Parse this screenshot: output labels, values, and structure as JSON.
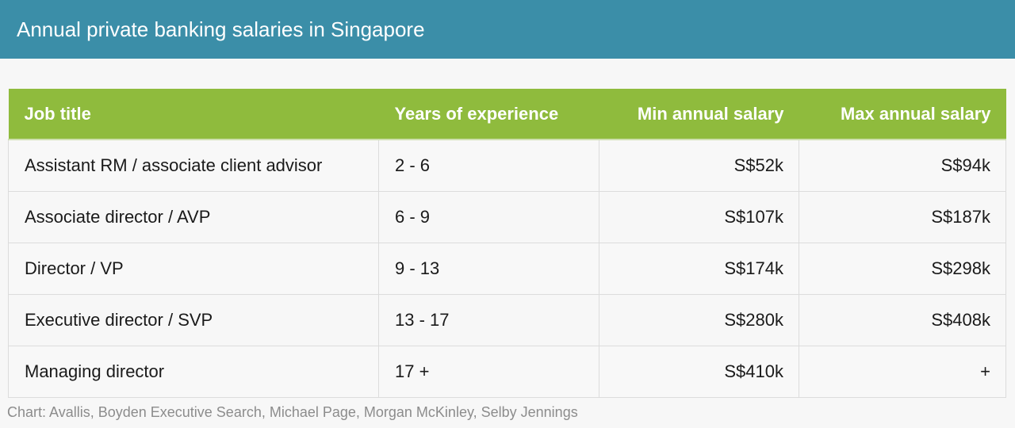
{
  "header": {
    "title": "Annual private banking salaries in Singapore"
  },
  "chart_data": {
    "type": "table",
    "title": "Annual private banking salaries in Singapore",
    "columns": [
      "Job title",
      "Years of experience",
      "Min annual salary",
      "Max annual salary"
    ],
    "rows": [
      [
        "Assistant RM / associate client advisor",
        "2 - 6",
        "S$52k",
        "S$94k"
      ],
      [
        "Associate director / AVP",
        "6 - 9",
        "S$107k",
        "S$187k"
      ],
      [
        "Director / VP",
        "9 - 13",
        "S$174k",
        "S$298k"
      ],
      [
        "Executive director / SVP",
        "13 - 17",
        "S$280k",
        "S$408k"
      ],
      [
        "Managing director",
        "17 +",
        "S$410k",
        "+"
      ]
    ],
    "source": "Chart: Avallis, Boyden Executive Search, Michael Page, Morgan McKinley, Selby Jennings"
  },
  "colors": {
    "banner": "#3b8ea8",
    "header_row": "#8fbb3d"
  }
}
